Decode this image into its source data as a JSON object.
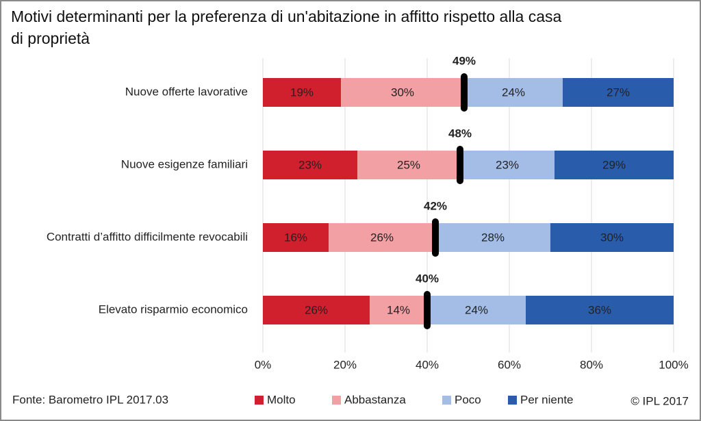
{
  "chart_data": {
    "type": "stacked_bar_horizontal",
    "title": "Motivi determinanti per la preferenza di un'abitazione in affitto rispetto alla casa di proprietà",
    "categories": [
      "Nuove offerte lavorative",
      "Nuove esigenze familiari",
      "Contratti d’affitto difficilmente revocabili",
      "Elevato risparmio economico"
    ],
    "series": [
      {
        "name": "Molto",
        "color": "#d0202e",
        "values": [
          19,
          23,
          16,
          26
        ],
        "value_labels": [
          "19%",
          "23%",
          "16%",
          "26%"
        ]
      },
      {
        "name": "Abbastanza",
        "color": "#f2a0a4",
        "values": [
          30,
          25,
          26,
          14
        ],
        "value_labels": [
          "30%",
          "25%",
          "26%",
          "14%"
        ]
      },
      {
        "name": "Poco",
        "color": "#a4bde6",
        "values": [
          24,
          23,
          28,
          24
        ],
        "value_labels": [
          "24%",
          "23%",
          "28%",
          "24%"
        ]
      },
      {
        "name": "Per niente",
        "color": "#2a5cac",
        "values": [
          27,
          29,
          30,
          36
        ],
        "value_labels": [
          "27%",
          "29%",
          "30%",
          "36%"
        ]
      }
    ],
    "markers": {
      "color": "#000000",
      "values": [
        49,
        48,
        42,
        40
      ],
      "value_labels": [
        "49%",
        "48%",
        "42%",
        "40%"
      ]
    },
    "xlim": [
      0,
      100
    ],
    "xticks": [
      {
        "value": 0,
        "label": "0%"
      },
      {
        "value": 20,
        "label": "20%"
      },
      {
        "value": 40,
        "label": "40%"
      },
      {
        "value": 60,
        "label": "60%"
      },
      {
        "value": 80,
        "label": "80%"
      },
      {
        "value": 100,
        "label": "100%"
      }
    ],
    "grid": true,
    "source": "Fonte: Barometro IPL 2017.03",
    "copyright": "© IPL 2017"
  }
}
